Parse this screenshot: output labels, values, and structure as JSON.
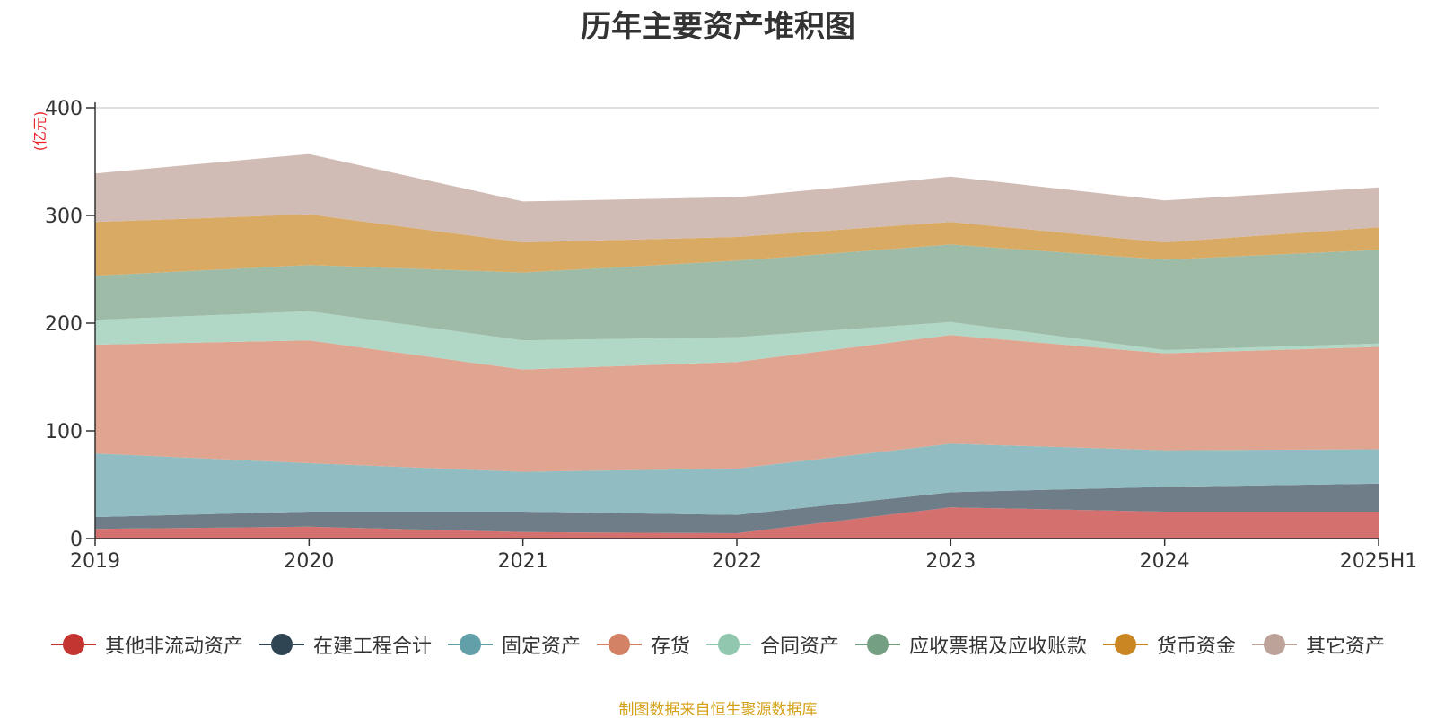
{
  "chart_data": {
    "type": "area",
    "stacked": true,
    "title": "历年主要资产堆积图",
    "y_unit_label": "(亿元)",
    "x": [
      "2019",
      "2020",
      "2021",
      "2022",
      "2023",
      "2024",
      "2025H1"
    ],
    "ylim": [
      0,
      400
    ],
    "yticks": [
      "0",
      "100",
      "200",
      "300",
      "400"
    ],
    "grid": true,
    "legend_position": "bottom",
    "series": [
      {
        "name": "其他非流动资产",
        "color": "#c23531",
        "fill": "#d4716f",
        "values": [
          9,
          11,
          6,
          5,
          29,
          25,
          25
        ]
      },
      {
        "name": "在建工程合计",
        "color": "#2f4554",
        "fill": "#6f7d88",
        "values": [
          11,
          14,
          19,
          17,
          14,
          23,
          26
        ]
      },
      {
        "name": "固定资产",
        "color": "#61a0a8",
        "fill": "#90bcc2",
        "values": [
          59,
          45,
          37,
          43,
          45,
          34,
          32
        ]
      },
      {
        "name": "存货",
        "color": "#d48265",
        "fill": "#e0a590",
        "values": [
          101,
          114,
          95,
          99,
          101,
          90,
          95
        ]
      },
      {
        "name": "合同资产",
        "color": "#91c7ae",
        "fill": "#b1d8c6",
        "values": [
          23,
          27,
          27,
          23,
          12,
          3,
          3
        ]
      },
      {
        "name": "应收票据及应收账款",
        "color": "#749f83",
        "fill": "#9ebba8",
        "values": [
          41,
          43,
          63,
          71,
          72,
          84,
          87
        ]
      },
      {
        "name": "货币资金",
        "color": "#ca8622",
        "fill": "#d9aa64",
        "values": [
          50,
          47,
          28,
          22,
          21,
          16,
          21
        ]
      },
      {
        "name": "其它资产",
        "color": "#bda29a",
        "fill": "#d1bcb5",
        "values": [
          45,
          56,
          38,
          37,
          42,
          39,
          37
        ]
      }
    ]
  },
  "source_note": "制图数据来自恒生聚源数据库"
}
